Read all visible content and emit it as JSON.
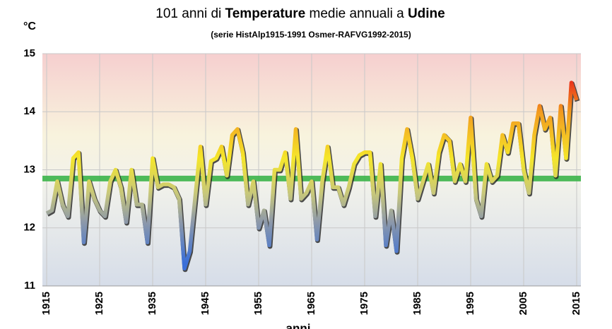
{
  "chart_data": {
    "type": "line",
    "title_parts": [
      "101 anni di ",
      "Temperature",
      " medie annuali a ",
      "Udine"
    ],
    "subtitle": "(serie HistAlp1915-1991 Osmer-RAFVG1992-2015)",
    "ylabel": "°C",
    "xlabel": "anni",
    "x": [
      1915,
      1916,
      1917,
      1918,
      1919,
      1920,
      1921,
      1922,
      1923,
      1924,
      1925,
      1926,
      1927,
      1928,
      1929,
      1930,
      1931,
      1932,
      1933,
      1934,
      1935,
      1936,
      1937,
      1938,
      1939,
      1940,
      1941,
      1942,
      1943,
      1944,
      1945,
      1946,
      1947,
      1948,
      1949,
      1950,
      1951,
      1952,
      1953,
      1954,
      1955,
      1956,
      1957,
      1958,
      1959,
      1960,
      1961,
      1962,
      1963,
      1964,
      1965,
      1966,
      1967,
      1968,
      1969,
      1970,
      1971,
      1972,
      1973,
      1974,
      1975,
      1976,
      1977,
      1978,
      1979,
      1980,
      1981,
      1982,
      1983,
      1984,
      1985,
      1986,
      1987,
      1988,
      1989,
      1990,
      1991,
      1992,
      1993,
      1994,
      1995,
      1996,
      1997,
      1998,
      1999,
      2000,
      2001,
      2002,
      2003,
      2004,
      2005,
      2006,
      2007,
      2008,
      2009,
      2010,
      2011,
      2012,
      2013,
      2014,
      2015
    ],
    "series": [
      {
        "values": [
          12.25,
          12.3,
          12.8,
          12.4,
          12.2,
          13.2,
          13.3,
          11.75,
          12.8,
          12.5,
          12.3,
          12.2,
          12.8,
          13.0,
          12.7,
          12.1,
          13.0,
          12.4,
          12.4,
          11.75,
          13.2,
          12.7,
          12.75,
          12.75,
          12.7,
          12.5,
          11.3,
          11.6,
          12.5,
          13.4,
          12.4,
          13.15,
          13.2,
          13.4,
          12.9,
          13.6,
          13.7,
          13.3,
          12.4,
          12.8,
          12.0,
          12.3,
          11.7,
          13.0,
          13.0,
          13.3,
          12.5,
          13.7,
          12.5,
          12.6,
          12.8,
          11.8,
          12.8,
          13.4,
          12.7,
          12.7,
          12.4,
          12.7,
          13.1,
          13.25,
          13.3,
          13.3,
          12.2,
          13.1,
          11.7,
          12.3,
          11.6,
          13.2,
          13.7,
          13.2,
          12.5,
          12.8,
          13.1,
          12.6,
          13.3,
          13.6,
          13.5,
          12.8,
          13.1,
          12.8,
          13.9,
          12.5,
          12.2,
          13.1,
          12.8,
          12.9,
          13.6,
          13.3,
          13.8,
          13.8,
          13.0,
          12.6,
          13.6,
          14.1,
          13.7,
          13.9,
          12.9,
          14.1,
          13.2,
          14.5,
          14.2
        ]
      }
    ],
    "reference_value": 12.85,
    "reference_color": "#3cb44a",
    "xlim": [
      1914.2,
      2015.8
    ],
    "xticks": [
      1915,
      1925,
      1935,
      1945,
      1955,
      1965,
      1975,
      1985,
      1995,
      2005,
      2015
    ],
    "ylim": [
      11,
      15
    ],
    "yticks": [
      11,
      12,
      13,
      14,
      15
    ],
    "grid": true
  }
}
